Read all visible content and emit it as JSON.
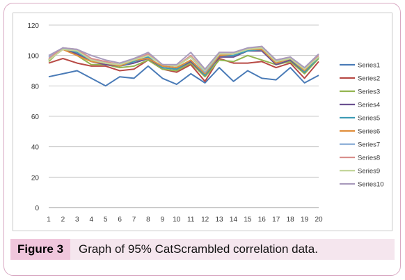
{
  "figure": {
    "label": "Figure  3",
    "caption": "Graph of 95% CatScrambled correlation data."
  },
  "chart_data": {
    "type": "line",
    "x": [
      1,
      2,
      3,
      4,
      5,
      6,
      7,
      8,
      9,
      10,
      11,
      12,
      13,
      14,
      15,
      16,
      17,
      18,
      19,
      20
    ],
    "ylim": [
      0,
      120
    ],
    "yticks": [
      0,
      20,
      40,
      60,
      80,
      100,
      120
    ],
    "grid": true,
    "legend_position": "right",
    "series": [
      {
        "name": "Series1",
        "color": "#4a7bb7",
        "values": [
          86,
          88,
          90,
          85,
          80,
          86,
          85,
          93,
          85,
          81,
          88,
          82,
          92,
          83,
          90,
          85,
          84,
          92,
          82,
          87
        ]
      },
      {
        "name": "Series2",
        "color": "#b84a45",
        "values": [
          95,
          98,
          95,
          93,
          93,
          90,
          91,
          97,
          91,
          89,
          94,
          83,
          98,
          95,
          95,
          96,
          92,
          95,
          85,
          96
        ]
      },
      {
        "name": "Series3",
        "color": "#93b550",
        "values": [
          96,
          105,
          100,
          94,
          94,
          92,
          93,
          97,
          91,
          90,
          95,
          86,
          97,
          96,
          100,
          97,
          94,
          96,
          88,
          98
        ]
      },
      {
        "name": "Series4",
        "color": "#6b5090",
        "values": [
          97,
          105,
          101,
          96,
          94,
          93,
          95,
          98,
          92,
          91,
          96,
          87,
          99,
          99,
          103,
          103,
          94,
          97,
          89,
          99
        ]
      },
      {
        "name": "Series5",
        "color": "#3e9cb5",
        "values": [
          98,
          105,
          102,
          97,
          95,
          93,
          96,
          99,
          92,
          91,
          97,
          87,
          100,
          100,
          103,
          104,
          95,
          98,
          89,
          99
        ]
      },
      {
        "name": "Series6",
        "color": "#e08f3c",
        "values": [
          97,
          104,
          100,
          96,
          95,
          93,
          97,
          98,
          93,
          92,
          97,
          88,
          100,
          101,
          104,
          104,
          95,
          98,
          90,
          100
        ]
      },
      {
        "name": "Series7",
        "color": "#8fb0d8",
        "values": [
          99,
          105,
          103,
          98,
          95,
          94,
          98,
          100,
          94,
          93,
          99,
          89,
          101,
          101,
          104,
          105,
          96,
          99,
          91,
          100
        ]
      },
      {
        "name": "Series8",
        "color": "#d98f8d",
        "values": [
          98,
          105,
          104,
          98,
          96,
          94,
          97,
          101,
          94,
          93,
          100,
          90,
          102,
          102,
          104,
          106,
          97,
          99,
          91,
          100
        ]
      },
      {
        "name": "Series9",
        "color": "#c3d69b",
        "values": [
          97,
          104,
          103,
          97,
          95,
          94,
          97,
          100,
          94,
          93,
          99,
          90,
          101,
          101,
          104,
          105,
          96,
          98,
          91,
          99
        ]
      },
      {
        "name": "Series10",
        "color": "#a99bbd",
        "values": [
          100,
          105,
          104,
          100,
          97,
          95,
          98,
          102,
          94,
          94,
          102,
          91,
          102,
          102,
          105,
          106,
          97,
          99,
          92,
          101
        ]
      }
    ]
  }
}
